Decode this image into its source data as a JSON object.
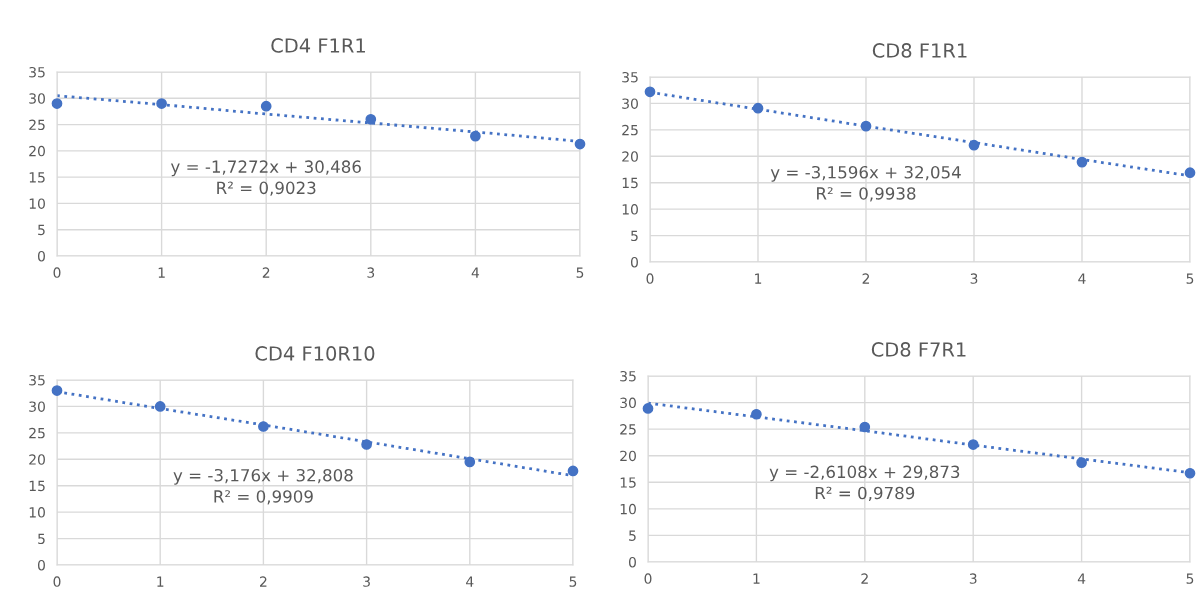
{
  "chart_data": [
    {
      "type": "scatter",
      "title": "CD4 F1R1",
      "x": [
        0,
        1,
        2,
        3,
        4,
        5
      ],
      "xlim": [
        0,
        5
      ],
      "xticks": [
        0,
        1,
        2,
        3,
        4,
        5
      ],
      "ylim": [
        0,
        35
      ],
      "yticks": [
        0,
        5,
        10,
        15,
        20,
        25,
        30,
        35
      ],
      "grid": true,
      "legend": false,
      "marker": "circle",
      "series": [
        {
          "color": "#4472c4",
          "values": [
            29,
            29,
            28.5,
            26,
            22.8,
            21.3
          ]
        },
        {
          "type": "line",
          "color": "#4472c4",
          "values": [
            30.5,
            28.8,
            27.0,
            25.3,
            23.6,
            21.8
          ],
          "line_style": "dotted",
          "marker": "none"
        }
      ],
      "annotations": [
        "y = -1,7272x + 30,486\nR² = 0,9023"
      ]
    },
    {
      "type": "scatter",
      "title": "CD8 F1R1",
      "x": [
        0,
        1,
        2,
        3,
        4,
        5
      ],
      "xlim": [
        0,
        5
      ],
      "xticks": [
        0,
        1,
        2,
        3,
        4,
        5
      ],
      "ylim": [
        0,
        35
      ],
      "yticks": [
        0,
        5,
        10,
        15,
        20,
        25,
        30,
        35
      ],
      "grid": true,
      "legend": false,
      "marker": "circle",
      "series": [
        {
          "color": "#4472c4",
          "values": [
            32.2,
            29.1,
            25.7,
            22.1,
            18.9,
            16.9
          ]
        },
        {
          "type": "line",
          "color": "#4472c4",
          "values": [
            32.1,
            28.9,
            25.7,
            22.6,
            19.4,
            16.3
          ],
          "line_style": "dotted",
          "marker": "none"
        }
      ],
      "annotations": [
        "y = -3,1596x + 32,054\nR² = 0,9938"
      ]
    },
    {
      "type": "scatter",
      "title": "CD4 F10R10",
      "x": [
        0,
        1,
        2,
        3,
        4,
        5
      ],
      "xlim": [
        0,
        5
      ],
      "xticks": [
        0,
        1,
        2,
        3,
        4,
        5
      ],
      "ylim": [
        0,
        35
      ],
      "yticks": [
        0,
        5,
        10,
        15,
        20,
        25,
        30,
        35
      ],
      "grid": true,
      "legend": false,
      "marker": "circle",
      "series": [
        {
          "color": "#4472c4",
          "values": [
            33,
            30,
            26.2,
            22.8,
            19.5,
            17.8
          ]
        },
        {
          "type": "line",
          "color": "#4472c4",
          "values": [
            32.8,
            29.6,
            26.5,
            23.3,
            20.1,
            16.9
          ],
          "line_style": "dotted",
          "marker": "none"
        }
      ],
      "annotations": [
        "y = -3,176x + 32,808\nR² = 0,9909"
      ]
    },
    {
      "type": "scatter",
      "title": "CD8 F7R1",
      "x": [
        0,
        1,
        2,
        3,
        4,
        5
      ],
      "xlim": [
        0,
        5
      ],
      "xticks": [
        0,
        1,
        2,
        3,
        4,
        5
      ],
      "ylim": [
        0,
        35
      ],
      "yticks": [
        0,
        5,
        10,
        15,
        20,
        25,
        30,
        35
      ],
      "grid": true,
      "legend": false,
      "marker": "circle",
      "series": [
        {
          "color": "#4472c4",
          "values": [
            28.9,
            27.8,
            25.4,
            22.1,
            18.7,
            16.7
          ]
        },
        {
          "type": "line",
          "color": "#4472c4",
          "values": [
            29.9,
            27.3,
            24.7,
            22.0,
            19.4,
            16.8
          ],
          "line_style": "dotted",
          "marker": "none"
        }
      ],
      "annotations": [
        "y = -2,6108x + 29,873\nR² = 0,9789"
      ]
    }
  ]
}
